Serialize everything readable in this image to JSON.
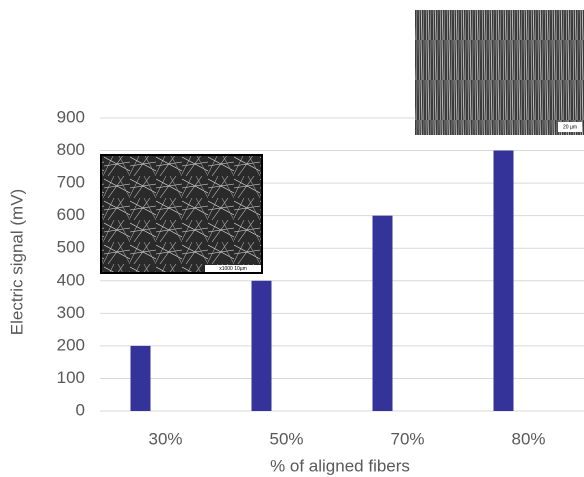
{
  "chart_data": {
    "type": "bar",
    "categories": [
      "30%",
      "50%",
      "70%",
      "80%"
    ],
    "values": [
      200,
      400,
      600,
      800
    ],
    "color": "#333399",
    "ylim": [
      0,
      900
    ],
    "yticks": [
      0,
      100,
      200,
      300,
      400,
      500,
      600,
      700,
      800,
      900
    ],
    "grid": true,
    "x_label": "% of aligned fibers",
    "y_label": "Electric signal (mV)",
    "annotations": [
      "20 µm",
      "x1000  10µm"
    ]
  }
}
